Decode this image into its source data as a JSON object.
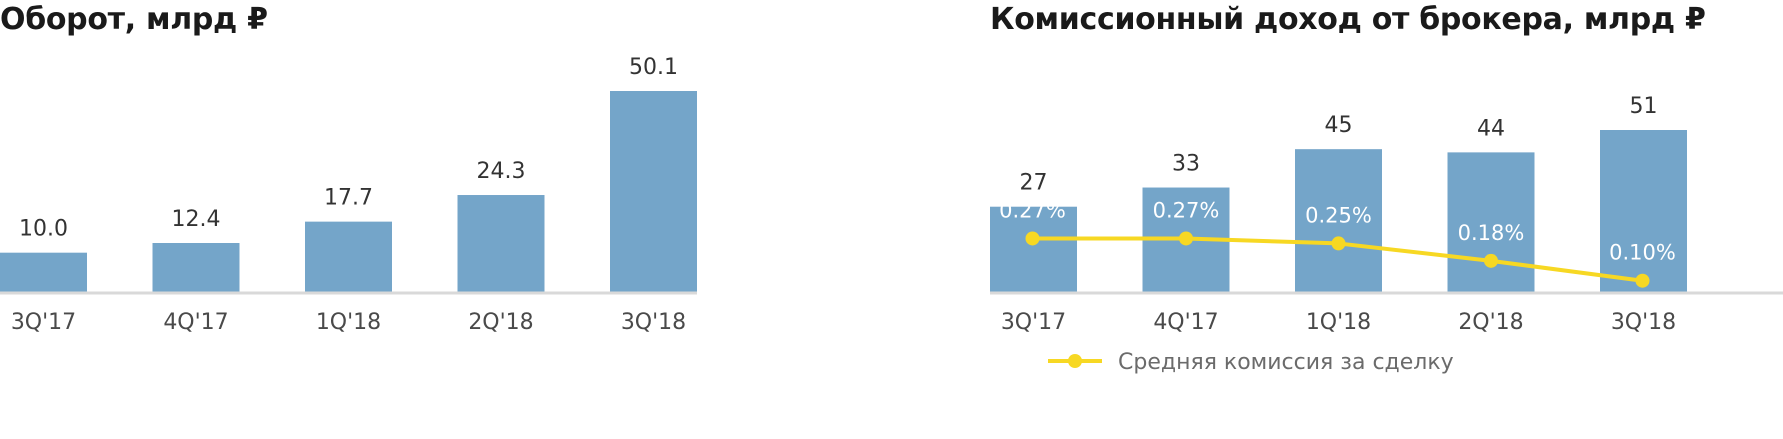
{
  "colors": {
    "bar": "#74a5c9",
    "axis": "#d9d9d9",
    "line": "#f7d823",
    "pct_text": "#ffffff"
  },
  "chart_data": [
    {
      "type": "bar",
      "title": "Оборот, млрд ₽",
      "categories": [
        "3Q'17",
        "4Q'17",
        "1Q'18",
        "2Q'18",
        "3Q'18"
      ],
      "values": [
        10.0,
        12.4,
        17.7,
        24.3,
        50.1
      ],
      "value_labels": [
        "10.0",
        "12.4",
        "17.7",
        "24.3",
        "50.1"
      ],
      "ylim": [
        0,
        50.1
      ],
      "grid": false
    },
    {
      "type": "bar",
      "title": "Комиссионный доход от брокера, млрд ₽",
      "categories": [
        "3Q'17",
        "4Q'17",
        "1Q'18",
        "2Q'18",
        "3Q'18"
      ],
      "values": [
        27,
        33,
        45,
        44,
        51
      ],
      "value_labels": [
        "27",
        "33",
        "45",
        "44",
        "51"
      ],
      "ylim": [
        0,
        51
      ],
      "grid": false,
      "line_series": {
        "name": "Средняя комиссия за сделку",
        "values": [
          0.27,
          0.27,
          0.25,
          0.18,
          0.1
        ],
        "value_labels": [
          "0.27%",
          "0.27%",
          "0.25%",
          "0.18%",
          "0.10%"
        ],
        "ylim": [
          0,
          0.3
        ]
      },
      "legend": "bottom"
    }
  ]
}
